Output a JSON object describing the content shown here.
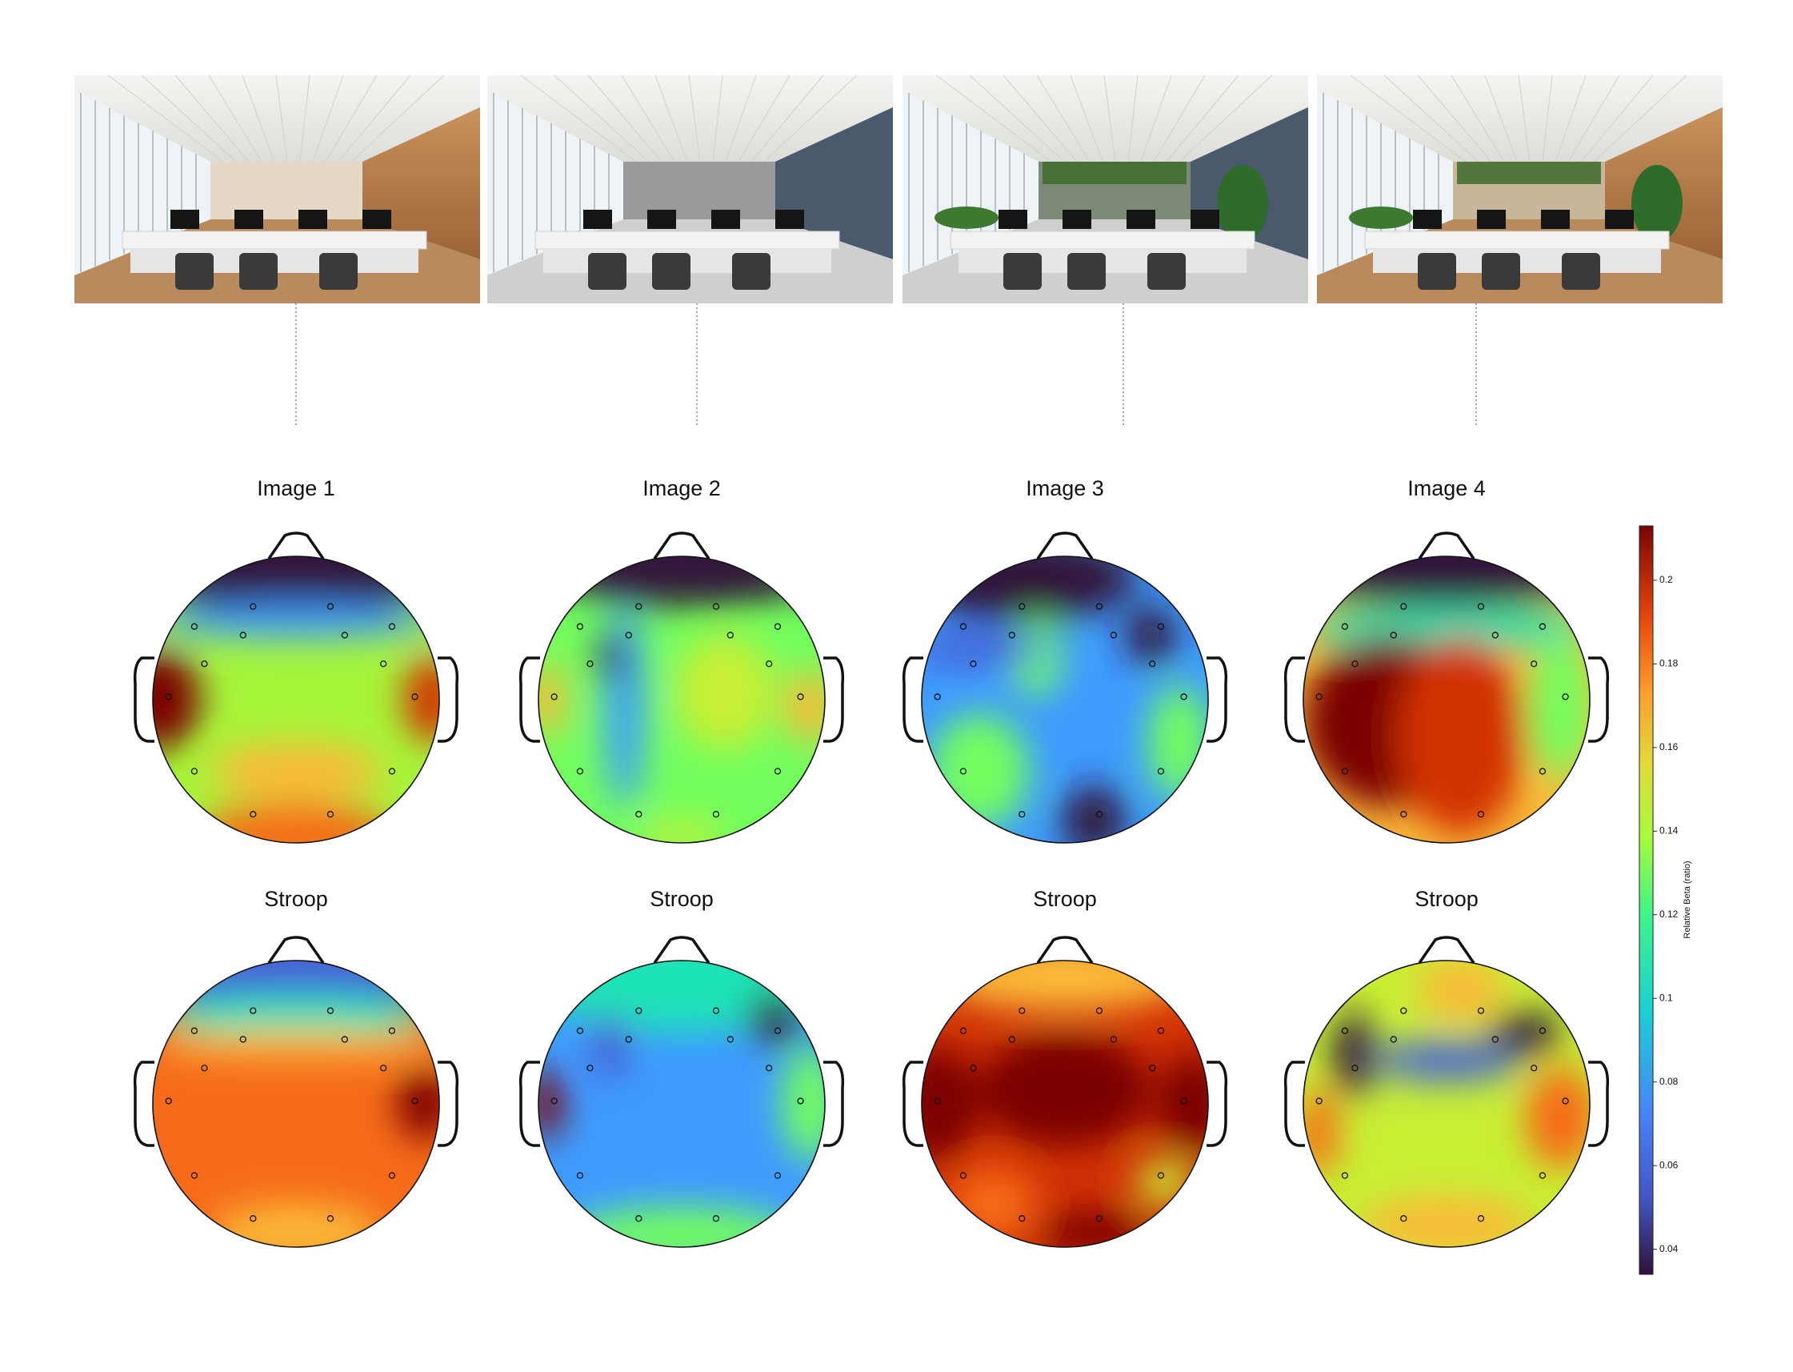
{
  "rows": [
    {
      "titles": [
        "Image 1",
        "Image 2",
        "Image 3",
        "Image 4"
      ]
    },
    {
      "titles": [
        "Stroop",
        "Stroop",
        "Stroop",
        "Stroop"
      ]
    }
  ],
  "chart_data": {
    "type": "colorbar",
    "label": "Relative Beta (ratio)",
    "ylim": [
      0.034,
      0.213
    ],
    "yticks": [
      0.04,
      0.06,
      0.08,
      0.1,
      0.12,
      0.14,
      0.16,
      0.18,
      0.2
    ]
  }
}
